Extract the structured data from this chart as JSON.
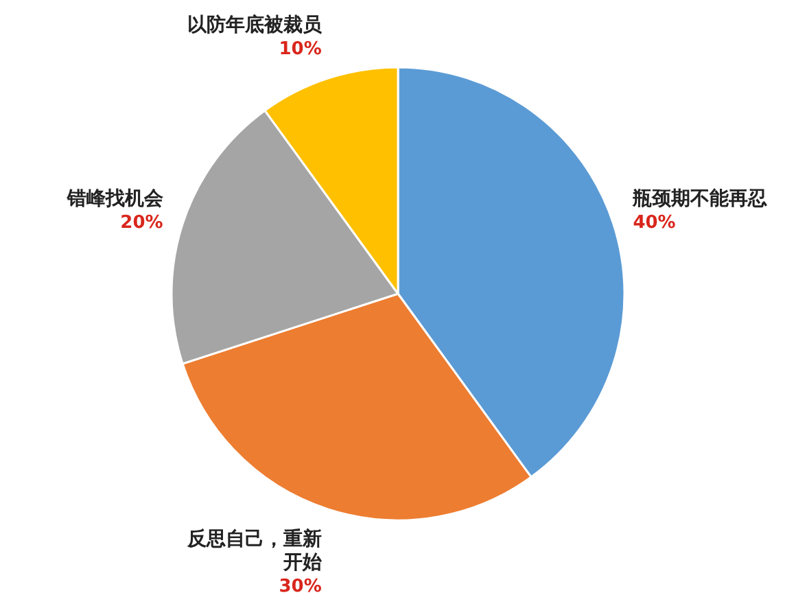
{
  "chart_data": {
    "type": "pie",
    "categories": [
      "瓶颈期不能再忍",
      "反思自己，重新开始",
      "错峰找机会",
      "以防年底被裁员"
    ],
    "values": [
      40,
      30,
      20,
      10
    ],
    "colors": [
      "#5b9bd5",
      "#ed7d31",
      "#a5a5a5",
      "#ffc000"
    ],
    "value_labels": [
      "40%",
      "30%",
      "20%",
      "10%"
    ]
  }
}
